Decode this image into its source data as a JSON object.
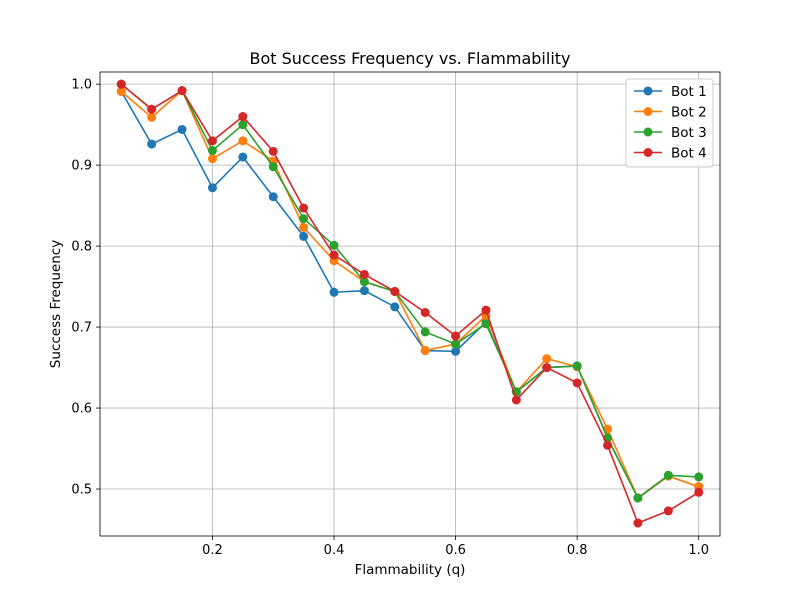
{
  "chart_data": {
    "type": "line",
    "title": "Bot Success Frequency vs. Flammability",
    "xlabel": "Flammability (q)",
    "ylabel": "Success Frequency",
    "xlim": [
      0.015,
      1.035
    ],
    "ylim": [
      0.442,
      1.015
    ],
    "xticks": [
      0.2,
      0.4,
      0.6,
      0.8,
      1.0
    ],
    "xtick_labels": [
      "0.2",
      "0.4",
      "0.6",
      "0.8",
      "1.0"
    ],
    "yticks": [
      0.5,
      0.6,
      0.7,
      0.8,
      0.9,
      1.0
    ],
    "ytick_labels": [
      "0.5",
      "0.6",
      "0.7",
      "0.8",
      "0.9",
      "1.0"
    ],
    "grid": true,
    "legend_position": "top-right",
    "x": [
      0.05,
      0.1,
      0.15,
      0.2,
      0.25,
      0.3,
      0.35,
      0.4,
      0.45,
      0.5,
      0.55,
      0.6,
      0.65,
      0.7,
      0.75,
      0.8,
      0.85,
      0.9,
      0.95,
      1.0
    ],
    "series": [
      {
        "name": "Bot 1",
        "color": "#1f77b4",
        "values": [
          0.991,
          0.926,
          0.944,
          0.872,
          0.91,
          0.861,
          0.812,
          0.743,
          0.745,
          0.725,
          0.671,
          0.67,
          0.706,
          0.62,
          0.65,
          0.652,
          0.563,
          0.489,
          0.516,
          0.503
        ]
      },
      {
        "name": "Bot 2",
        "color": "#ff7f0e",
        "values": [
          0.991,
          0.959,
          0.992,
          0.908,
          0.93,
          0.905,
          0.823,
          0.782,
          0.756,
          0.744,
          0.671,
          0.679,
          0.714,
          0.62,
          0.661,
          0.651,
          0.574,
          0.489,
          0.516,
          0.503
        ]
      },
      {
        "name": "Bot 3",
        "color": "#2ca02c",
        "values": [
          1.0,
          0.969,
          0.992,
          0.918,
          0.95,
          0.898,
          0.834,
          0.801,
          0.756,
          0.744,
          0.694,
          0.679,
          0.704,
          0.62,
          0.65,
          0.652,
          0.563,
          0.489,
          0.517,
          0.515
        ]
      },
      {
        "name": "Bot 4",
        "color": "#d62728",
        "values": [
          1.0,
          0.969,
          0.992,
          0.93,
          0.96,
          0.917,
          0.847,
          0.789,
          0.765,
          0.744,
          0.718,
          0.689,
          0.721,
          0.61,
          0.65,
          0.631,
          0.554,
          0.458,
          0.473,
          0.496
        ]
      }
    ]
  }
}
